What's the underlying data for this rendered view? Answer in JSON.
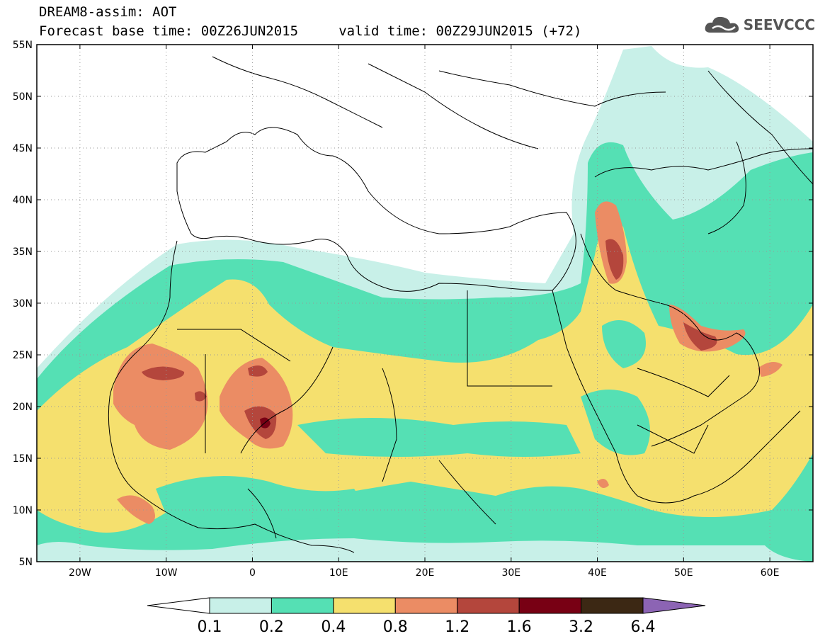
{
  "header": {
    "title_line1": "DREAM8-assim: AOT",
    "title_line2": "Forecast base time: 00Z26JUN2015     valid time: 00Z29JUN2015 (+72)",
    "logo_text": "SEEVCCC"
  },
  "map": {
    "variable": "AOT",
    "lon_range": [
      -25,
      65
    ],
    "lat_range": [
      5,
      55
    ],
    "lon_ticks": [
      "20W",
      "10W",
      "0",
      "10E",
      "20E",
      "30E",
      "40E",
      "50E",
      "60E"
    ],
    "lat_ticks": [
      "55N",
      "50N",
      "45N",
      "40N",
      "35N",
      "30N",
      "25N",
      "20N",
      "15N",
      "10N",
      "5N"
    ],
    "grid": "dotted"
  },
  "colorbar": {
    "labels": [
      "0.1",
      "0.2",
      "0.4",
      "0.8",
      "1.2",
      "1.6",
      "3.2",
      "6.4"
    ],
    "colors": [
      "#ffffff",
      "#c8f0e8",
      "#55e0b4",
      "#f5e06e",
      "#eb8c64",
      "#b4463c",
      "#780014",
      "#3c2814",
      "#8c64b4"
    ]
  }
}
